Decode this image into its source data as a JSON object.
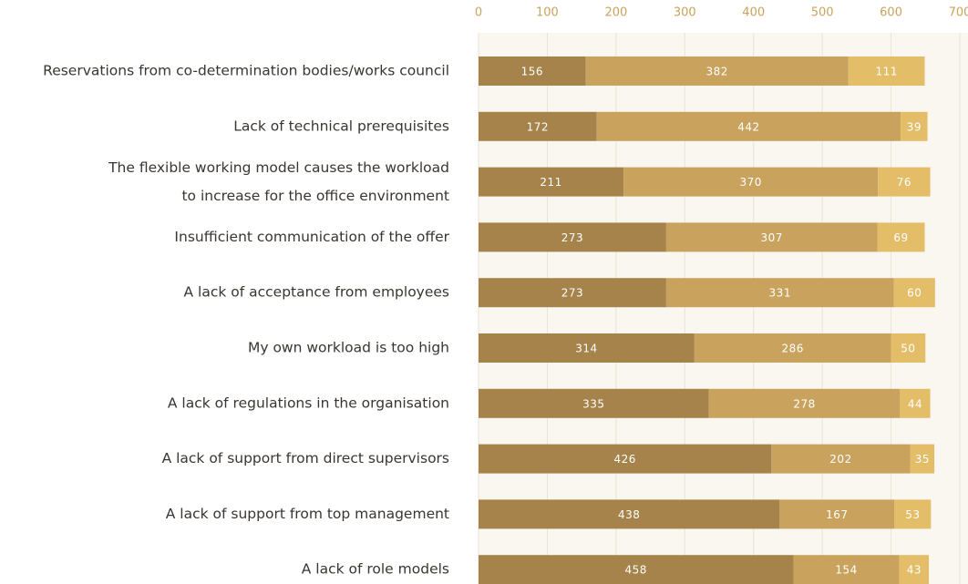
{
  "chart_data": {
    "type": "stacked-barh",
    "categories": [
      "Reservations from co-determination bodies/works council",
      "Lack of technical prerequisites",
      "The flexible working model causes the workload\nto increase for the office environment",
      "Insufficient communication of the offer",
      "A lack of acceptance from employees",
      "My own workload is too high",
      "A lack of regulations in the organisation",
      "A lack of support from direct supervisors",
      "A lack of support from top management",
      "A lack of role models"
    ],
    "series": [
      {
        "color": "#a6834a",
        "values": [
          156,
          172,
          211,
          273,
          273,
          314,
          335,
          426,
          438,
          458
        ]
      },
      {
        "color": "#c9a35e",
        "values": [
          382,
          442,
          370,
          307,
          331,
          286,
          278,
          202,
          167,
          154
        ]
      },
      {
        "color": "#e3bd68",
        "values": [
          111,
          39,
          76,
          69,
          60,
          50,
          44,
          35,
          53,
          43
        ]
      }
    ],
    "xlim": [
      0,
      700
    ],
    "xticks": [
      0,
      100,
      200,
      300,
      400,
      500,
      600,
      700
    ],
    "grid": true
  }
}
